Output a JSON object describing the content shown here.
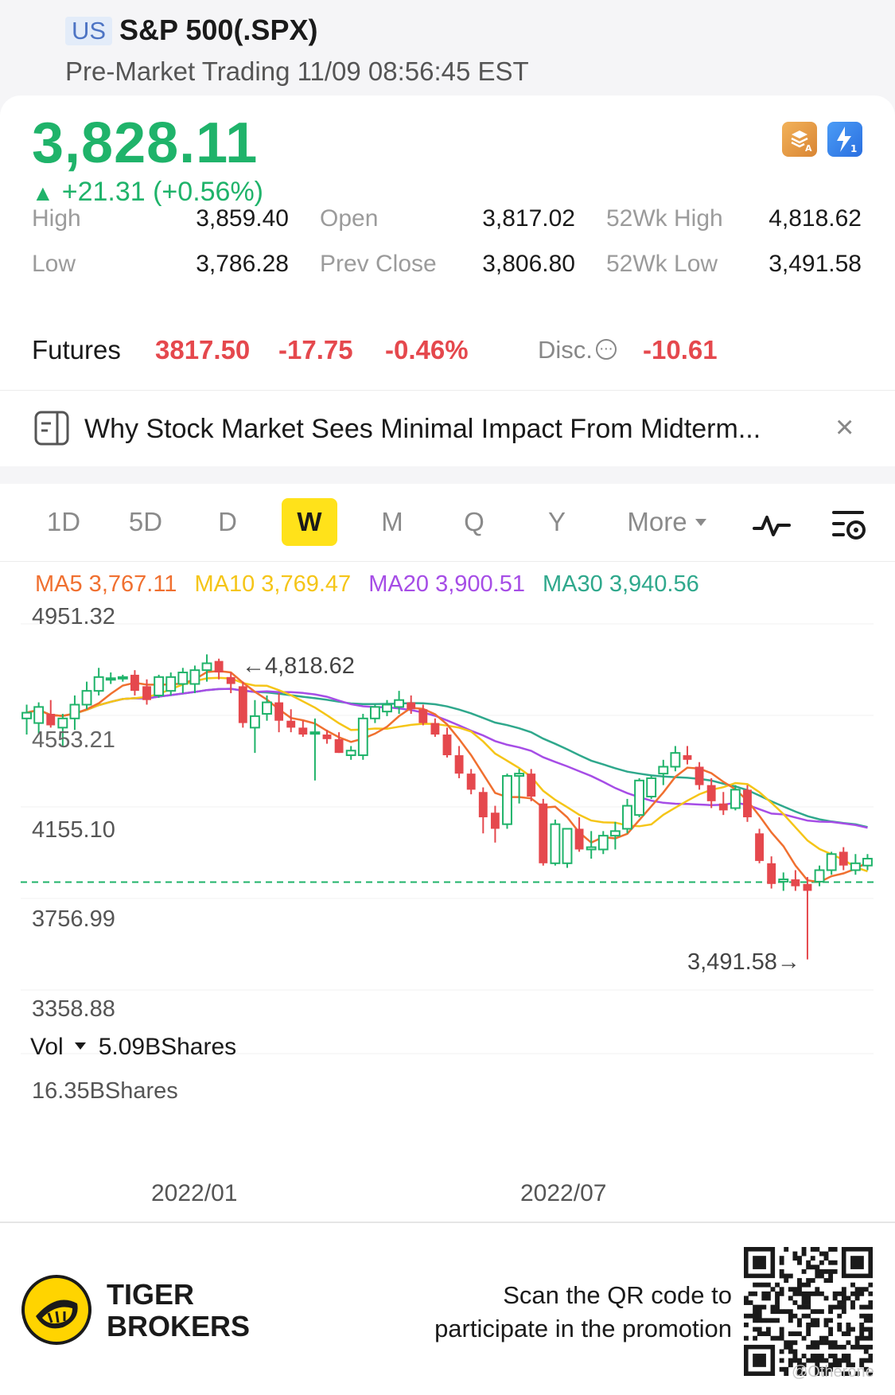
{
  "header": {
    "market_badge": "US",
    "title": "S&P 500(.SPX)",
    "session": "Pre-Market Trading 11/09 08:56:45 EST"
  },
  "quote": {
    "price": "3,828.11",
    "change_arrow": "▲",
    "change": "+21.31 (+0.56%)",
    "price_color": "#1fb36a",
    "stats": {
      "high_label": "High",
      "high_value": "3,859.40",
      "low_label": "Low",
      "low_value": "3,786.28",
      "open_label": "Open",
      "open_value": "3,817.02",
      "prev_close_label": "Prev Close",
      "prev_close_value": "3,806.80",
      "wk52_high_label": "52Wk High",
      "wk52_high_value": "4,818.62",
      "wk52_low_label": "52Wk Low",
      "wk52_low_value": "3,491.58"
    },
    "badges": [
      "stack-a-icon",
      "lightning-1-icon"
    ]
  },
  "futures": {
    "label": "Futures",
    "price": "3817.50",
    "change": "-17.75",
    "change_pct": "-0.46%",
    "disc_label": "Disc.",
    "disc_value": "-10.61",
    "negative_color": "#e5484d"
  },
  "news": {
    "headline": "Why Stock Market Sees Minimal Impact From Midterm...",
    "close": "×"
  },
  "chart": {
    "tabs": [
      "1D",
      "5D",
      "D",
      "W",
      "M",
      "Q",
      "Y"
    ],
    "active_tab": "W",
    "more_label": "More",
    "tools": [
      "indicator-wave-icon",
      "chart-settings-icon"
    ],
    "ma": {
      "ma5": "MA5 3,767.11",
      "ma10": "MA10 3,769.47",
      "ma20": "MA20 3,900.51",
      "ma30": "MA30 3,940.56",
      "colors": {
        "ma5": "#f07030",
        "ma10": "#f5c518",
        "ma20": "#a64de6",
        "ma30": "#2fa88c"
      }
    },
    "axis_labels": {
      "top": "4951.32",
      "mid_upper": "4553.21",
      "mid": "4155.10",
      "mid_lower": "3756.99",
      "bottom": "3358.88"
    },
    "high_annotation": "←4,818.62",
    "low_annotation": "3,491.58→",
    "volume": {
      "label": "Vol",
      "value": "5.09BShares",
      "max_label": "16.35BShares"
    },
    "date_labels": [
      "2022/01",
      "2022/07"
    ],
    "up_color": "#1fb36a",
    "down_color": "#e5484d"
  },
  "chart_data": {
    "type": "candlestick",
    "interval": "weekly",
    "ylim": [
      3358.88,
      4951.32
    ],
    "y_ticks": [
      4951.32,
      4553.21,
      4155.1,
      3756.99,
      3358.88
    ],
    "current_price_line": 3828.11,
    "period_high": 4818.62,
    "period_low": 3491.58,
    "x_labels": [
      "2022/01",
      "2022/07"
    ],
    "candles": [
      {
        "o": 4540,
        "h": 4600,
        "l": 4470,
        "c": 4565
      },
      {
        "o": 4520,
        "h": 4610,
        "l": 4470,
        "c": 4590
      },
      {
        "o": 4560,
        "h": 4620,
        "l": 4500,
        "c": 4510
      },
      {
        "o": 4500,
        "h": 4560,
        "l": 4420,
        "c": 4540
      },
      {
        "o": 4540,
        "h": 4640,
        "l": 4490,
        "c": 4600
      },
      {
        "o": 4600,
        "h": 4700,
        "l": 4580,
        "c": 4660
      },
      {
        "o": 4660,
        "h": 4760,
        "l": 4640,
        "c": 4720
      },
      {
        "o": 4710,
        "h": 4740,
        "l": 4690,
        "c": 4715
      },
      {
        "o": 4715,
        "h": 4730,
        "l": 4700,
        "c": 4720
      },
      {
        "o": 4730,
        "h": 4750,
        "l": 4640,
        "c": 4660
      },
      {
        "o": 4680,
        "h": 4710,
        "l": 4600,
        "c": 4620
      },
      {
        "o": 4640,
        "h": 4730,
        "l": 4630,
        "c": 4720
      },
      {
        "o": 4660,
        "h": 4740,
        "l": 4640,
        "c": 4720
      },
      {
        "o": 4690,
        "h": 4760,
        "l": 4650,
        "c": 4740
      },
      {
        "o": 4690,
        "h": 4770,
        "l": 4650,
        "c": 4750
      },
      {
        "o": 4750,
        "h": 4818.62,
        "l": 4700,
        "c": 4780
      },
      {
        "o": 4790,
        "h": 4800,
        "l": 4710,
        "c": 4740
      },
      {
        "o": 4720,
        "h": 4740,
        "l": 4650,
        "c": 4690
      },
      {
        "o": 4680,
        "h": 4700,
        "l": 4500,
        "c": 4520
      },
      {
        "o": 4500,
        "h": 4620,
        "l": 4390,
        "c": 4550
      },
      {
        "o": 4560,
        "h": 4640,
        "l": 4530,
        "c": 4610
      },
      {
        "o": 4610,
        "h": 4650,
        "l": 4480,
        "c": 4530
      },
      {
        "o": 4530,
        "h": 4580,
        "l": 4480,
        "c": 4500
      },
      {
        "o": 4500,
        "h": 4530,
        "l": 4460,
        "c": 4470
      },
      {
        "o": 4480,
        "h": 4540,
        "l": 4270,
        "c": 4480
      },
      {
        "o": 4470,
        "h": 4490,
        "l": 4430,
        "c": 4450
      },
      {
        "o": 4450,
        "h": 4480,
        "l": 4390,
        "c": 4390
      },
      {
        "o": 4380,
        "h": 4420,
        "l": 4360,
        "c": 4400
      },
      {
        "o": 4380,
        "h": 4560,
        "l": 4360,
        "c": 4540
      },
      {
        "o": 4540,
        "h": 4600,
        "l": 4520,
        "c": 4590
      },
      {
        "o": 4570,
        "h": 4620,
        "l": 4550,
        "c": 4600
      },
      {
        "o": 4590,
        "h": 4660,
        "l": 4560,
        "c": 4620
      },
      {
        "o": 4610,
        "h": 4640,
        "l": 4560,
        "c": 4580
      },
      {
        "o": 4580,
        "h": 4600,
        "l": 4510,
        "c": 4520
      },
      {
        "o": 4520,
        "h": 4540,
        "l": 4460,
        "c": 4470
      },
      {
        "o": 4470,
        "h": 4500,
        "l": 4370,
        "c": 4380
      },
      {
        "o": 4380,
        "h": 4420,
        "l": 4280,
        "c": 4300
      },
      {
        "o": 4300,
        "h": 4320,
        "l": 4210,
        "c": 4230
      },
      {
        "o": 4220,
        "h": 4240,
        "l": 4040,
        "c": 4110
      },
      {
        "o": 4130,
        "h": 4160,
        "l": 4000,
        "c": 4060
      },
      {
        "o": 4080,
        "h": 4300,
        "l": 4060,
        "c": 4290
      },
      {
        "o": 4290,
        "h": 4320,
        "l": 4170,
        "c": 4300
      },
      {
        "o": 4300,
        "h": 4320,
        "l": 4180,
        "c": 4200
      },
      {
        "o": 4170,
        "h": 4190,
        "l": 3900,
        "c": 3910
      },
      {
        "o": 3910,
        "h": 4100,
        "l": 3900,
        "c": 4080
      },
      {
        "o": 3910,
        "h": 4060,
        "l": 3890,
        "c": 4060
      },
      {
        "o": 4060,
        "h": 4110,
        "l": 3960,
        "c": 3970
      },
      {
        "o": 3970,
        "h": 4050,
        "l": 3930,
        "c": 3980
      },
      {
        "o": 3970,
        "h": 4050,
        "l": 3950,
        "c": 4030
      },
      {
        "o": 4030,
        "h": 4090,
        "l": 3970,
        "c": 4050
      },
      {
        "o": 4060,
        "h": 4190,
        "l": 4040,
        "c": 4160
      },
      {
        "o": 4120,
        "h": 4280,
        "l": 4110,
        "c": 4270
      },
      {
        "o": 4200,
        "h": 4290,
        "l": 4190,
        "c": 4280
      },
      {
        "o": 4300,
        "h": 4360,
        "l": 4250,
        "c": 4330
      },
      {
        "o": 4330,
        "h": 4420,
        "l": 4310,
        "c": 4390
      },
      {
        "o": 4380,
        "h": 4420,
        "l": 4340,
        "c": 4360
      },
      {
        "o": 4330,
        "h": 4350,
        "l": 4230,
        "c": 4250
      },
      {
        "o": 4250,
        "h": 4280,
        "l": 4150,
        "c": 4180
      },
      {
        "o": 4170,
        "h": 4220,
        "l": 4120,
        "c": 4140
      },
      {
        "o": 4150,
        "h": 4250,
        "l": 4140,
        "c": 4230
      },
      {
        "o": 4230,
        "h": 4250,
        "l": 4090,
        "c": 4110
      },
      {
        "o": 4040,
        "h": 4060,
        "l": 3910,
        "c": 3920
      },
      {
        "o": 3910,
        "h": 3940,
        "l": 3800,
        "c": 3820
      },
      {
        "o": 3830,
        "h": 3870,
        "l": 3790,
        "c": 3840
      },
      {
        "o": 3840,
        "h": 3880,
        "l": 3790,
        "c": 3810
      },
      {
        "o": 3820,
        "h": 3850,
        "l": 3491.58,
        "c": 3790
      },
      {
        "o": 3830,
        "h": 3900,
        "l": 3810,
        "c": 3880
      },
      {
        "o": 3880,
        "h": 3960,
        "l": 3860,
        "c": 3950
      },
      {
        "o": 3960,
        "h": 3980,
        "l": 3880,
        "c": 3900
      },
      {
        "o": 3880,
        "h": 3950,
        "l": 3860,
        "c": 3910
      },
      {
        "o": 3900,
        "h": 3950,
        "l": 3880,
        "c": 3930
      }
    ],
    "ma_series": [
      {
        "name": "MA5",
        "latest": 3767.11
      },
      {
        "name": "MA10",
        "latest": 3769.47
      },
      {
        "name": "MA20",
        "latest": 3900.51
      },
      {
        "name": "MA30",
        "latest": 3940.56
      }
    ],
    "volume_latest": "5.09BShares",
    "volume_max": "16.35BShares"
  }
}
